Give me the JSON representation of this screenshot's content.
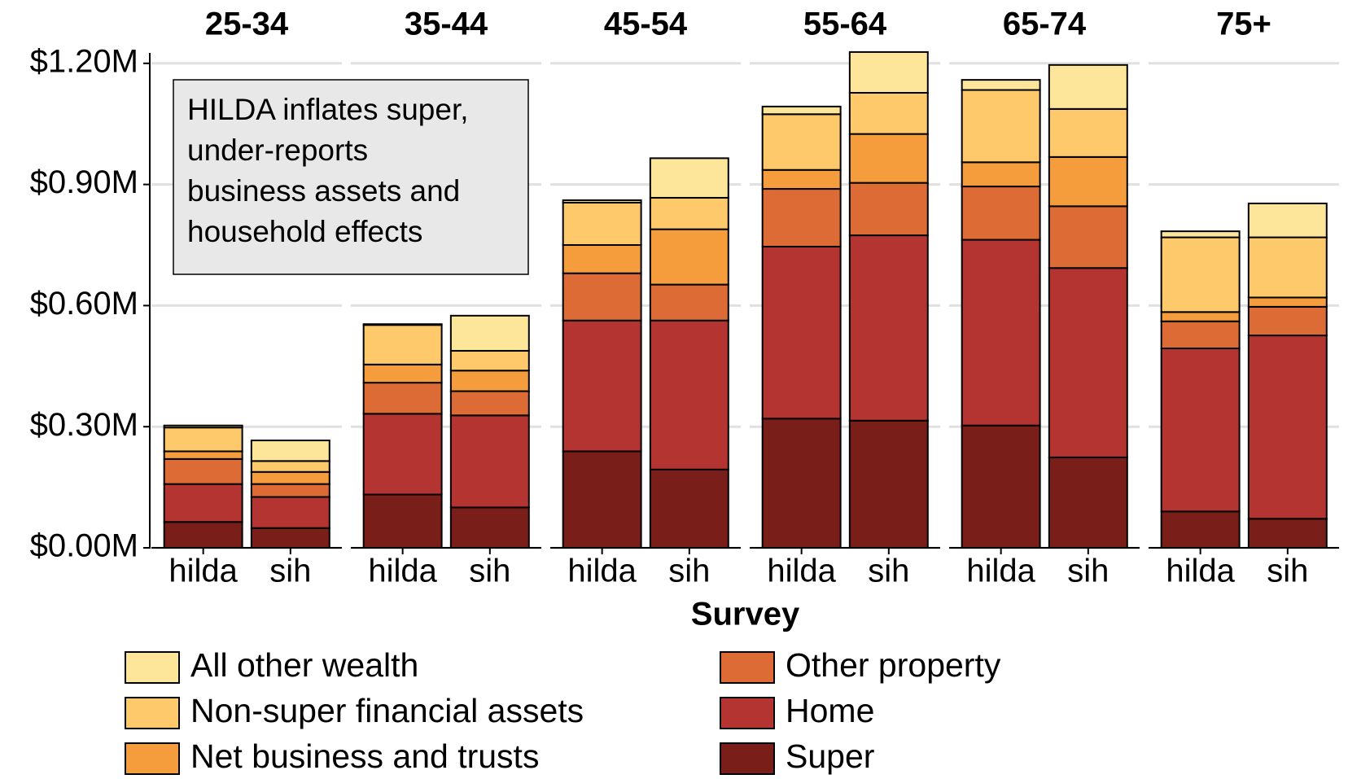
{
  "chart_data": {
    "type": "bar",
    "stacked": true,
    "categories": [
      "25-34",
      "35-44",
      "45-54",
      "55-64",
      "65-74",
      "75+"
    ],
    "x_categories": [
      "hilda",
      "sih"
    ],
    "x_label": "Survey",
    "annotation": [
      "HILDA inflates super,",
      "under-reports",
      "business assets and",
      "household effects"
    ],
    "ylim": [
      0,
      1.25
    ],
    "yticks": [
      {
        "value": 0,
        "label": "$0.00M"
      },
      {
        "value": 0.3,
        "label": "$0.30M"
      },
      {
        "value": 0.6,
        "label": "$0.60M"
      },
      {
        "value": 0.9,
        "label": "$0.90M"
      },
      {
        "value": 1.2,
        "label": "$1.20M"
      }
    ],
    "grid": true,
    "legend": "bottom",
    "series": [
      {
        "name": "Super",
        "color": "#7a1e1a",
        "values": [
          [
            0.064,
            0.049
          ],
          [
            0.132,
            0.1
          ],
          [
            0.239,
            0.194
          ],
          [
            0.32,
            0.315
          ],
          [
            0.303,
            0.224
          ],
          [
            0.09,
            0.072
          ]
        ]
      },
      {
        "name": "Home",
        "color": "#b33431",
        "values": [
          [
            0.094,
            0.077
          ],
          [
            0.2,
            0.228
          ],
          [
            0.324,
            0.369
          ],
          [
            0.426,
            0.459
          ],
          [
            0.46,
            0.469
          ],
          [
            0.404,
            0.454
          ]
        ]
      },
      {
        "name": "Other property",
        "color": "#dd6b35",
        "values": [
          [
            0.062,
            0.032
          ],
          [
            0.077,
            0.06
          ],
          [
            0.117,
            0.089
          ],
          [
            0.143,
            0.13
          ],
          [
            0.132,
            0.153
          ],
          [
            0.067,
            0.071
          ]
        ]
      },
      {
        "name": "Net business and trusts",
        "color": "#f59d3d",
        "values": [
          [
            0.019,
            0.03
          ],
          [
            0.045,
            0.051
          ],
          [
            0.07,
            0.137
          ],
          [
            0.047,
            0.121
          ],
          [
            0.06,
            0.122
          ],
          [
            0.023,
            0.023
          ]
        ]
      },
      {
        "name": "Non-super financial assets",
        "color": "#fdc96a",
        "values": [
          [
            0.059,
            0.027
          ],
          [
            0.098,
            0.049
          ],
          [
            0.105,
            0.078
          ],
          [
            0.138,
            0.102
          ],
          [
            0.179,
            0.119
          ],
          [
            0.185,
            0.149
          ]
        ]
      },
      {
        "name": "All other wealth",
        "color": "#fde69a",
        "values": [
          [
            0.005,
            0.051
          ],
          [
            0.002,
            0.087
          ],
          [
            0.006,
            0.098
          ],
          [
            0.019,
            0.101
          ],
          [
            0.025,
            0.109
          ],
          [
            0.015,
            0.084
          ]
        ]
      }
    ]
  }
}
